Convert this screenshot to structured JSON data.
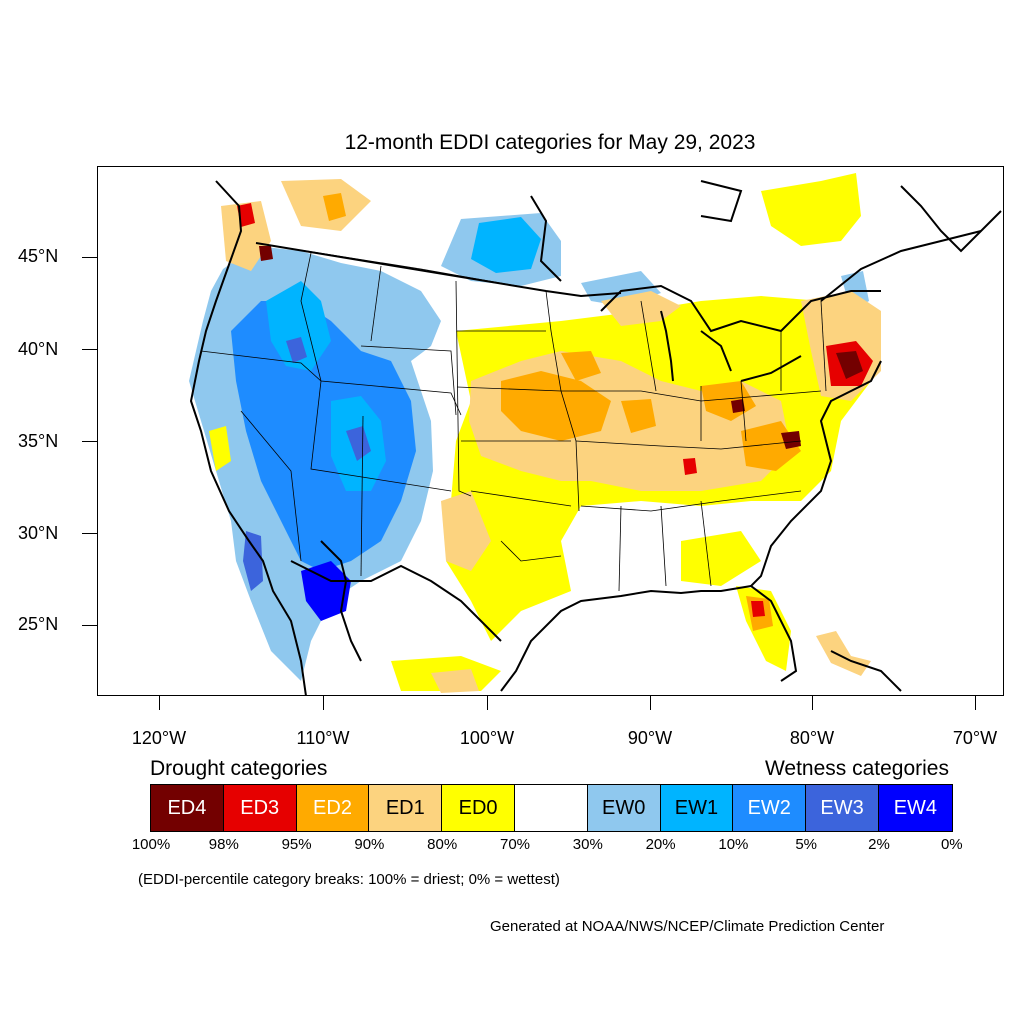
{
  "title": "12-month EDDI categories for May 29, 2023",
  "lat_labels": [
    "45°N",
    "40°N",
    "35°N",
    "30°N",
    "25°N"
  ],
  "lon_labels": [
    "120°W",
    "110°W",
    "100°W",
    "90°W",
    "80°W",
    "70°W"
  ],
  "drought_heading": "Drought categories",
  "wetness_heading": "Wetness categories",
  "legend": [
    {
      "label": "ED4",
      "color": "#730000",
      "text_color": "#ffffff"
    },
    {
      "label": "ED3",
      "color": "#e60000",
      "text_color": "#ffffff"
    },
    {
      "label": "ED2",
      "color": "#ffaa00",
      "text_color": "#ffffff"
    },
    {
      "label": "ED1",
      "color": "#fcd37f",
      "text_color": "#000000"
    },
    {
      "label": "ED0",
      "color": "#ffff00",
      "text_color": "#000000"
    },
    {
      "label": "",
      "color": "#ffffff",
      "text_color": "#000000"
    },
    {
      "label": "EW0",
      "color": "#8fc8ee",
      "text_color": "#000000"
    },
    {
      "label": "EW1",
      "color": "#00b4ff",
      "text_color": "#000000"
    },
    {
      "label": "EW2",
      "color": "#1e8cff",
      "text_color": "#ffffff"
    },
    {
      "label": "EW3",
      "color": "#3c64dc",
      "text_color": "#ffffff"
    },
    {
      "label": "EW4",
      "color": "#0000ff",
      "text_color": "#ffffff"
    }
  ],
  "percent_breaks": [
    "100%",
    "98%",
    "95%",
    "90%",
    "80%",
    "70%",
    "30%",
    "20%",
    "10%",
    "5%",
    "2%",
    "0%"
  ],
  "footnote": "(EDDI-percentile category breaks: 100% = driest; 0% = wettest)",
  "credit": "Generated at NOAA/NWS/NCEP/Climate Prediction Center"
}
